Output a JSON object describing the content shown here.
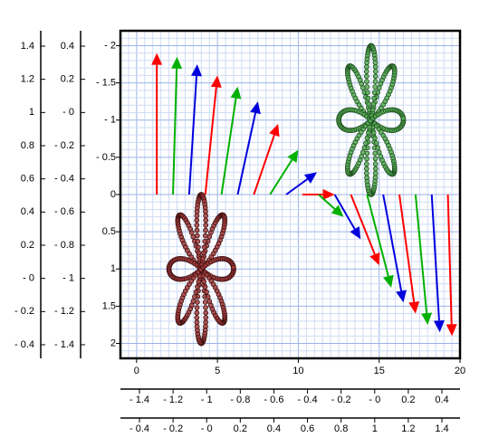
{
  "chart_data": {
    "type": "scatter",
    "title": "",
    "xlabel": "",
    "ylabel": "",
    "main_axes": {
      "xlim": [
        -1,
        20
      ],
      "ylim": [
        2.2,
        -2.2
      ],
      "y_inverted": true,
      "xticks": [
        0,
        5,
        10,
        15,
        20
      ],
      "yticks": [
        -2,
        -1.5,
        -1,
        -0.5,
        0,
        0.5,
        1,
        1.5,
        2
      ],
      "xtick_labels": [
        "0",
        "5",
        "10",
        "15",
        "20"
      ],
      "ytick_labels": [
        "- 2",
        "- 1.5",
        "- 1",
        "- 0.5",
        "0",
        "0.5",
        "1",
        "1.5",
        "2"
      ],
      "grid": true,
      "minor_grid": true
    },
    "extra_axes": {
      "left_outer_labels": [
        "1.4",
        "1.2",
        "1",
        "0.8",
        "0.6",
        "0.4",
        "0.2",
        "- 0",
        "- 0.2",
        "- 0.4"
      ],
      "left_inner_labels": [
        "0.4",
        "0.2",
        "- 0",
        "- 0.2",
        "- 0.4",
        "- 0.6",
        "- 0.8",
        "- 1",
        "- 1.2",
        "- 1.4"
      ],
      "bottom_upper_labels": [
        "- 1.4",
        "- 1.2",
        "- 1",
        "- 0.8",
        "- 0.6",
        "- 0.4",
        "- 0.2",
        "- 0",
        "0.2",
        "0.4"
      ],
      "bottom_lower_labels": [
        "- 0.4",
        "- 0.2",
        "- 0",
        "0.2",
        "0.4",
        "0.6",
        "0.8",
        "1",
        "1.2",
        "1.4"
      ]
    },
    "flowers": [
      {
        "color": "#a23b3b",
        "edge": "#3d0f0f",
        "center": [
          4,
          1
        ],
        "petals": 8,
        "radius": 1,
        "points": 300,
        "marker_radius_data": 0.06
      },
      {
        "color": "#55aa55",
        "edge": "#1f4f1f",
        "center": [
          14.5,
          -1
        ],
        "petals": 8,
        "radius": 1,
        "points": 300,
        "marker_radius_data": 0.06
      }
    ],
    "arrows": [
      {
        "x": 1.25,
        "y": 0,
        "dx": 0,
        "dy": -1.9,
        "color": "red"
      },
      {
        "x": 2.25,
        "y": 0,
        "dx": 0.25,
        "dy": -1.85,
        "color": "green"
      },
      {
        "x": 3.25,
        "y": 0,
        "dx": 0.5,
        "dy": -1.75,
        "color": "blue"
      },
      {
        "x": 4.25,
        "y": 0,
        "dx": 0.75,
        "dy": -1.6,
        "color": "red"
      },
      {
        "x": 5.25,
        "y": 0,
        "dx": 1.0,
        "dy": -1.45,
        "color": "green"
      },
      {
        "x": 6.25,
        "y": 0,
        "dx": 1.25,
        "dy": -1.25,
        "color": "blue"
      },
      {
        "x": 7.25,
        "y": 0,
        "dx": 1.5,
        "dy": -0.95,
        "color": "red"
      },
      {
        "x": 8.25,
        "y": 0,
        "dx": 1.75,
        "dy": -0.6,
        "color": "green"
      },
      {
        "x": 9.25,
        "y": 0,
        "dx": 1.9,
        "dy": -0.3,
        "color": "blue"
      },
      {
        "x": 10.25,
        "y": 0,
        "dx": 2.0,
        "dy": 0,
        "color": "red"
      },
      {
        "x": 11.25,
        "y": 0,
        "dx": 1.55,
        "dy": 0.3,
        "color": "green"
      },
      {
        "x": 12.25,
        "y": 0,
        "dx": 1.6,
        "dy": 0.6,
        "color": "blue"
      },
      {
        "x": 13.25,
        "y": 0,
        "dx": 1.75,
        "dy": 0.95,
        "color": "red"
      },
      {
        "x": 14.25,
        "y": 0,
        "dx": 1.5,
        "dy": 1.25,
        "color": "green"
      },
      {
        "x": 15.25,
        "y": 0,
        "dx": 1.25,
        "dy": 1.45,
        "color": "blue"
      },
      {
        "x": 16.25,
        "y": 0,
        "dx": 1.0,
        "dy": 1.6,
        "color": "red"
      },
      {
        "x": 17.25,
        "y": 0,
        "dx": 0.75,
        "dy": 1.75,
        "color": "green"
      },
      {
        "x": 18.25,
        "y": 0,
        "dx": 0.5,
        "dy": 1.85,
        "color": "blue"
      },
      {
        "x": 19.25,
        "y": 0,
        "dx": 0.25,
        "dy": 1.9,
        "color": "red"
      }
    ]
  }
}
